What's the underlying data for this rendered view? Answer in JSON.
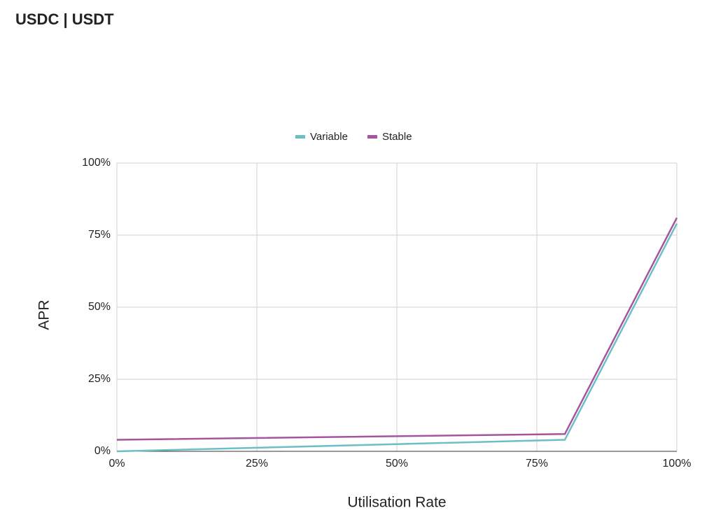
{
  "header": {
    "title": "USDC | USDT"
  },
  "chart_data": {
    "type": "line",
    "x_label": "Utilisation Rate",
    "y_label": "APR",
    "x": [
      0,
      80,
      100
    ],
    "series": [
      {
        "name": "Variable",
        "color": "#6dbfc6",
        "values": [
          0,
          4,
          79
        ]
      },
      {
        "name": "Stable",
        "color": "#a5559f",
        "values": [
          4,
          6,
          81
        ]
      }
    ],
    "xlim": [
      0,
      100
    ],
    "ylim": [
      0,
      100
    ],
    "xticks": [
      {
        "value": 0,
        "label": "0%"
      },
      {
        "value": 25,
        "label": "25%"
      },
      {
        "value": 50,
        "label": "50%"
      },
      {
        "value": 75,
        "label": "75%"
      },
      {
        "value": 100,
        "label": "100%"
      }
    ],
    "yticks": [
      {
        "value": 0,
        "label": "0%"
      },
      {
        "value": 25,
        "label": "25%"
      },
      {
        "value": 50,
        "label": "50%"
      },
      {
        "value": 75,
        "label": "75%"
      },
      {
        "value": 100,
        "label": "100%"
      }
    ],
    "grid": true,
    "legend": "top"
  }
}
